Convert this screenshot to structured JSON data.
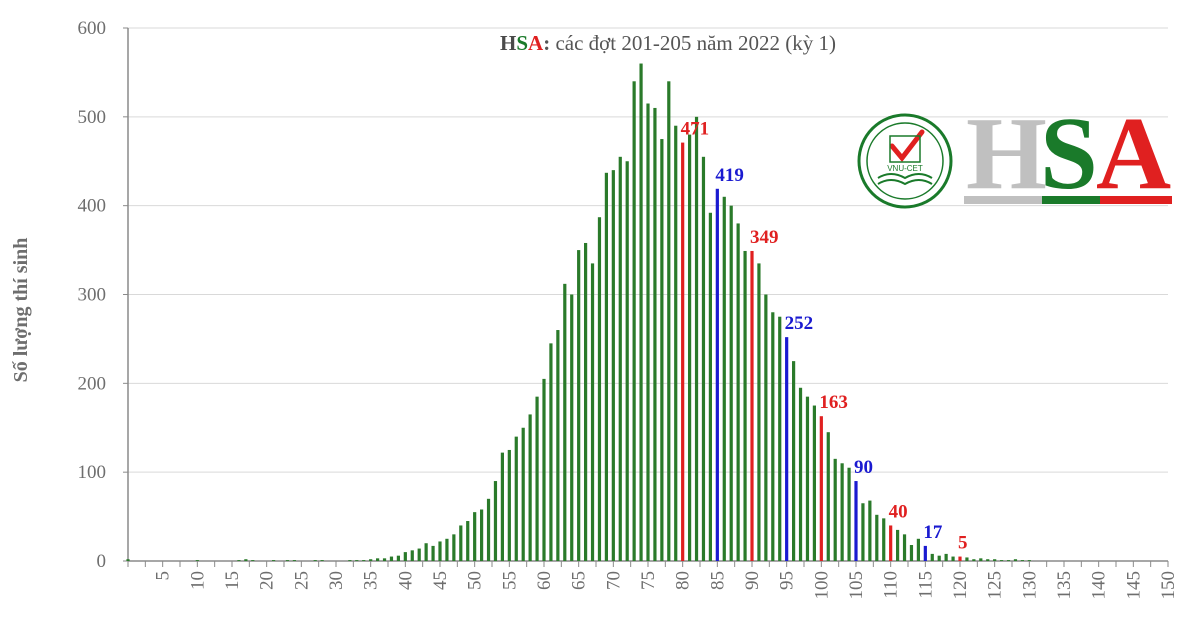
{
  "chart_data": {
    "type": "bar",
    "title": {
      "brand": [
        {
          "text": "H",
          "color": "#4a4a4a"
        },
        {
          "text": "S",
          "color": "#1a7a2a"
        },
        {
          "text": "A",
          "color": "#e02020"
        }
      ],
      "colon": ":",
      "rest": " các đợt 201-205 năm 2022 (kỳ 1)"
    },
    "ylabel": "Số lượng thí sinh",
    "xlabel": "",
    "ylim": [
      0,
      600
    ],
    "yticks": [
      0,
      100,
      200,
      300,
      400,
      500,
      600
    ],
    "xlim": [
      0,
      150
    ],
    "xticks": [
      5,
      10,
      15,
      20,
      25,
      30,
      35,
      40,
      45,
      50,
      55,
      60,
      65,
      70,
      75,
      80,
      85,
      90,
      95,
      100,
      105,
      110,
      115,
      120,
      125,
      130,
      135,
      140,
      145,
      150
    ],
    "grid": true,
    "x": [
      0,
      1,
      2,
      3,
      4,
      5,
      6,
      7,
      8,
      9,
      10,
      11,
      12,
      13,
      14,
      15,
      16,
      17,
      18,
      19,
      20,
      21,
      22,
      23,
      24,
      25,
      26,
      27,
      28,
      29,
      30,
      31,
      32,
      33,
      34,
      35,
      36,
      37,
      38,
      39,
      40,
      41,
      42,
      43,
      44,
      45,
      46,
      47,
      48,
      49,
      50,
      51,
      52,
      53,
      54,
      55,
      56,
      57,
      58,
      59,
      60,
      61,
      62,
      63,
      64,
      65,
      66,
      67,
      68,
      69,
      70,
      71,
      72,
      73,
      74,
      75,
      76,
      77,
      78,
      79,
      80,
      81,
      82,
      83,
      84,
      85,
      86,
      87,
      88,
      89,
      90,
      91,
      92,
      93,
      94,
      95,
      96,
      97,
      98,
      99,
      100,
      101,
      102,
      103,
      104,
      105,
      106,
      107,
      108,
      109,
      110,
      111,
      112,
      113,
      114,
      115,
      116,
      117,
      118,
      119,
      120,
      121,
      122,
      123,
      124,
      125,
      126,
      127,
      128,
      129,
      130
    ],
    "values": [
      2,
      0,
      0,
      0,
      0,
      0,
      0,
      0,
      0,
      0,
      1,
      0,
      0,
      0,
      0,
      0,
      1,
      2,
      1,
      0,
      0,
      1,
      0,
      1,
      1,
      0,
      0,
      1,
      1,
      0,
      0,
      0,
      1,
      1,
      1,
      2,
      3,
      3,
      5,
      6,
      10,
      12,
      14,
      20,
      17,
      22,
      25,
      30,
      40,
      45,
      55,
      58,
      70,
      90,
      122,
      125,
      140,
      150,
      165,
      185,
      205,
      245,
      260,
      312,
      300,
      350,
      358,
      335,
      387,
      437,
      440,
      455,
      450,
      540,
      560,
      515,
      510,
      475,
      540,
      490,
      471,
      480,
      500,
      455,
      392,
      419,
      410,
      400,
      380,
      349,
      349,
      335,
      300,
      280,
      275,
      252,
      225,
      195,
      185,
      175,
      163,
      145,
      115,
      110,
      105,
      90,
      65,
      68,
      52,
      48,
      40,
      35,
      30,
      18,
      25,
      17,
      8,
      6,
      8,
      5,
      5,
      4,
      2,
      3,
      2,
      2,
      1,
      1,
      2,
      1,
      1
    ],
    "bar_color": "#2a7a2a",
    "highlights": [
      {
        "x": 80,
        "value": 471,
        "label": "471",
        "color": "#e02020"
      },
      {
        "x": 85,
        "value": 419,
        "label": "419",
        "color": "#1a1ad0"
      },
      {
        "x": 90,
        "value": 349,
        "label": "349",
        "color": "#e02020"
      },
      {
        "x": 95,
        "value": 252,
        "label": "252",
        "color": "#1a1ad0"
      },
      {
        "x": 100,
        "value": 163,
        "label": "163",
        "color": "#e02020"
      },
      {
        "x": 105,
        "value": 90,
        "label": "90",
        "color": "#1a1ad0"
      },
      {
        "x": 110,
        "value": 40,
        "label": "40",
        "color": "#e02020"
      },
      {
        "x": 115,
        "value": 17,
        "label": "17",
        "color": "#1a1ad0"
      },
      {
        "x": 120,
        "value": 5,
        "label": "5",
        "color": "#e02020"
      }
    ]
  },
  "logo": {
    "seal_text": "VNU-CET",
    "letters": [
      {
        "text": "H",
        "color": "#c0c0c0",
        "stripe": "#c0c0c0"
      },
      {
        "text": "S",
        "color": "#1a7a2a",
        "stripe": "#1a7a2a"
      },
      {
        "text": "A",
        "color": "#e02020",
        "stripe": "#e02020"
      }
    ],
    "seal_color": "#1a7a2a",
    "check_color": "#e02020"
  }
}
